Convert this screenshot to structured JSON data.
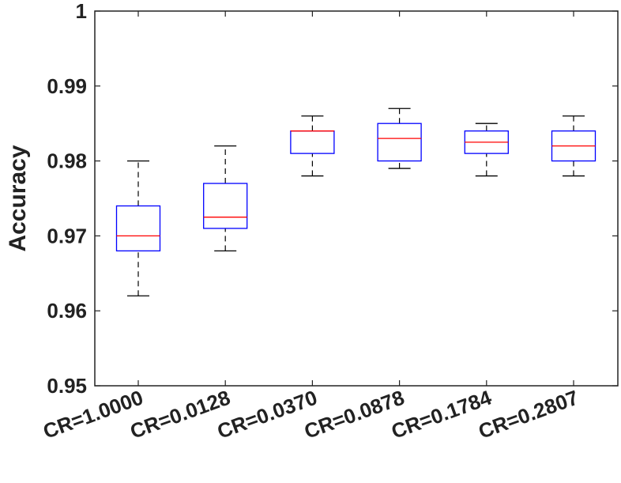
{
  "chart_data": {
    "type": "box",
    "title": "",
    "xlabel": "",
    "ylabel": "Accuracy",
    "ylim": [
      0.95,
      1.0
    ],
    "yticks": [
      0.95,
      0.96,
      0.97,
      0.98,
      0.99,
      1
    ],
    "ytick_labels": [
      "0.95",
      "0.96",
      "0.97",
      "0.98",
      "0.99",
      "1"
    ],
    "grid": false,
    "categories": [
      "CR=1.0000",
      "CR=0.0128",
      "CR=0.0370",
      "CR=0.0878",
      "CR=0.1784",
      "CR=0.2807"
    ],
    "boxes": [
      {
        "min": 0.962,
        "q1": 0.968,
        "median": 0.97,
        "q3": 0.974,
        "max": 0.98
      },
      {
        "min": 0.968,
        "q1": 0.971,
        "median": 0.9725,
        "q3": 0.977,
        "max": 0.982
      },
      {
        "min": 0.978,
        "q1": 0.981,
        "median": 0.984,
        "q3": 0.984,
        "max": 0.986
      },
      {
        "min": 0.979,
        "q1": 0.98,
        "median": 0.983,
        "q3": 0.985,
        "max": 0.987
      },
      {
        "min": 0.978,
        "q1": 0.981,
        "median": 0.9825,
        "q3": 0.984,
        "max": 0.985
      },
      {
        "min": 0.978,
        "q1": 0.98,
        "median": 0.982,
        "q3": 0.984,
        "max": 0.986
      }
    ],
    "colors": {
      "box": "#0000ff",
      "median": "#ff0000",
      "whisker": "#000000",
      "axis": "#222222"
    }
  }
}
